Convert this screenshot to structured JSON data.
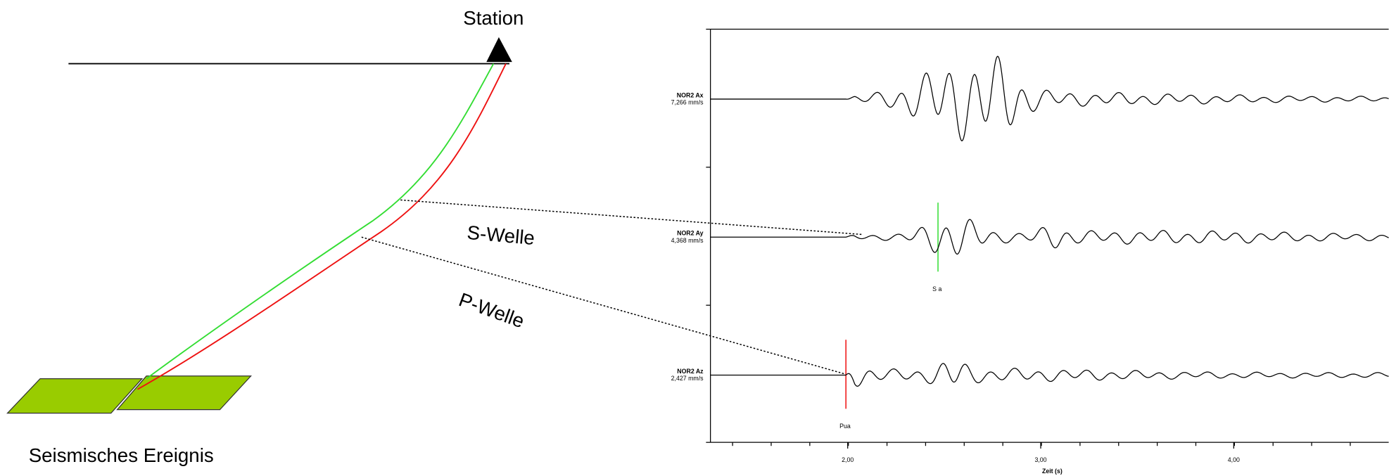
{
  "labels": {
    "station": "Station",
    "event": "Seismisches Ereignis",
    "s_wave": "S-Welle",
    "p_wave": "P-Welle"
  },
  "seismogram": {
    "traces": [
      {
        "name": "NOR2  Ax",
        "scale": "7,266 mm/s"
      },
      {
        "name": "NOR2  Ay",
        "scale": "4,368 mm/s",
        "pick": "S a"
      },
      {
        "name": "NOR2  Az",
        "scale": "2,427 mm/s",
        "pick": "Pua"
      }
    ],
    "x_ticks": [
      "2,00",
      "3,00",
      "4,00"
    ],
    "x_label": "Zeit (s)"
  }
}
